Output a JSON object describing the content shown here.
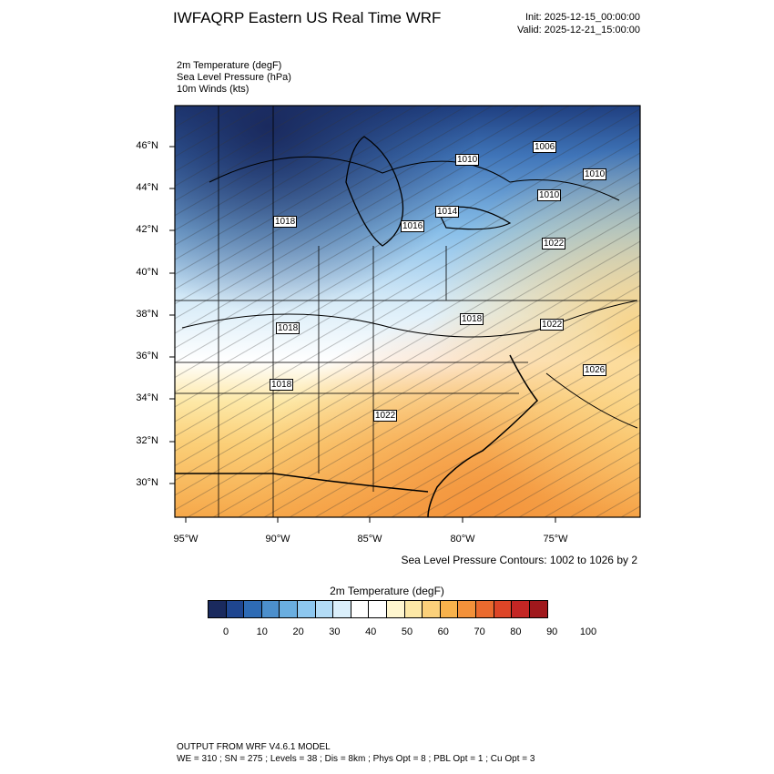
{
  "header": {
    "title": "IWFAQRP Eastern US Real Time WRF",
    "init": "Init: 2025-12-15_00:00:00",
    "valid": "Valid: 2025-12-21_15:00:00"
  },
  "variables": [
    "2m Temperature   (degF)",
    "Sea Level Pressure   (hPa)",
    "10m Winds   (kts)"
  ],
  "map": {
    "lat_ticks": [
      "46°N",
      "44°N",
      "42°N",
      "40°N",
      "38°N",
      "36°N",
      "34°N",
      "32°N",
      "30°N"
    ],
    "lon_ticks": [
      "95°W",
      "90°W",
      "85°W",
      "80°W",
      "75°W"
    ],
    "contour_labels": [
      "1006",
      "1010",
      "1010",
      "1010",
      "1014",
      "1016",
      "1018",
      "1022",
      "1022",
      "1026",
      "1018",
      "1018",
      "1018",
      "1022",
      "1026"
    ],
    "slp_note": "Sea Level Pressure Contours: 1002 to 1026 by 2"
  },
  "colorbar": {
    "title": "2m Temperature  (degF)",
    "colors": [
      "#1a2a5e",
      "#1f4690",
      "#2e6bb5",
      "#4c8fcc",
      "#6aaee0",
      "#8dc7ef",
      "#b3dcf6",
      "#daeffb",
      "#ffffff",
      "#ffffff",
      "#fff6cf",
      "#fde8a6",
      "#fbd07a",
      "#f8b24c",
      "#f3913a",
      "#ea6a2e",
      "#dd4527",
      "#c42624",
      "#a0181c"
    ],
    "labels": [
      "0",
      "10",
      "20",
      "30",
      "40",
      "50",
      "60",
      "70",
      "80",
      "90",
      "100"
    ]
  },
  "footer": {
    "line1": "OUTPUT FROM WRF V4.6.1 MODEL",
    "line2": "WE = 310 ; SN = 275 ; Levels = 38 ; Dis = 8km ; Phys Opt = 8 ; PBL Opt = 1 ; Cu Opt = 3"
  }
}
